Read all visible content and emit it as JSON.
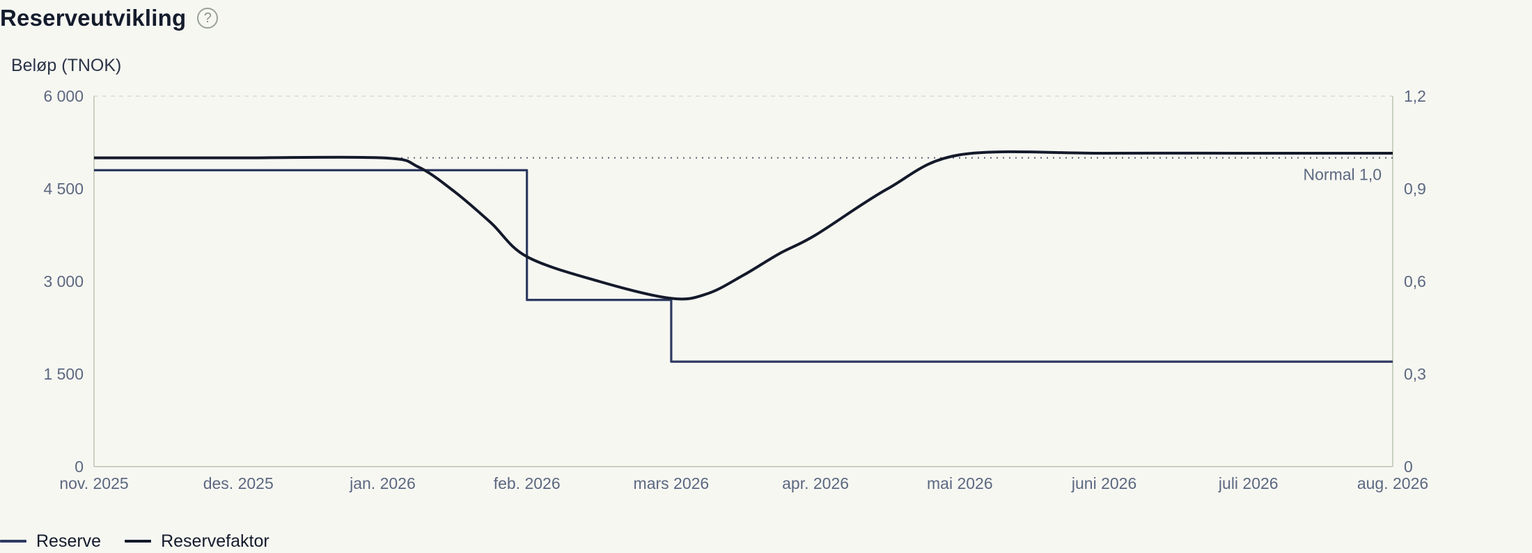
{
  "header": {
    "title": "Reserveutvikling",
    "help_symbol": "?"
  },
  "chart_data": {
    "type": "line",
    "ylabel": "Beløp (TNOK)",
    "x_ticks": [
      "nov. 2025",
      "des. 2025",
      "jan. 2026",
      "feb. 2026",
      "mars 2026",
      "apr. 2026",
      "mai 2026",
      "juni 2026",
      "juli 2026",
      "aug. 2026"
    ],
    "y_left": {
      "min": 0,
      "max": 6000,
      "ticks": [
        0,
        1500,
        3000,
        4500,
        6000
      ],
      "tick_labels": [
        "0",
        "1 500",
        "3 000",
        "4 500",
        "6 000"
      ]
    },
    "y_right": {
      "min": 0,
      "max": 1.2,
      "ticks": [
        0,
        0.3,
        0.6,
        0.9,
        1.2
      ],
      "tick_labels": [
        "0",
        "0,3",
        "0,6",
        "0,9",
        "1,2"
      ]
    },
    "reference_line": {
      "value": 1.0,
      "axis": "right",
      "label": "Normal 1,0"
    },
    "grid": "top gridline only",
    "legend_position": "bottom-left",
    "series": [
      {
        "name": "Reserve",
        "axis": "left",
        "style": "step",
        "color": "#2e3a61",
        "x": [
          0,
          3,
          3,
          4,
          4,
          9
        ],
        "y": [
          4800,
          4800,
          2700,
          2700,
          1700,
          1700
        ]
      },
      {
        "name": "Reservefaktor",
        "axis": "right",
        "style": "smooth",
        "color": "#141a2a",
        "x": [
          0,
          1,
          2,
          2.25,
          2.5,
          2.75,
          3,
          3.5,
          4,
          4.25,
          4.5,
          4.75,
          5,
          5.5,
          6,
          7,
          8,
          9
        ],
        "y": [
          1.0,
          1.0,
          1.0,
          0.97,
          0.89,
          0.79,
          0.68,
          0.6,
          0.545,
          0.56,
          0.62,
          0.69,
          0.75,
          0.9,
          1.01,
          1.015,
          1.015,
          1.015
        ]
      }
    ]
  }
}
